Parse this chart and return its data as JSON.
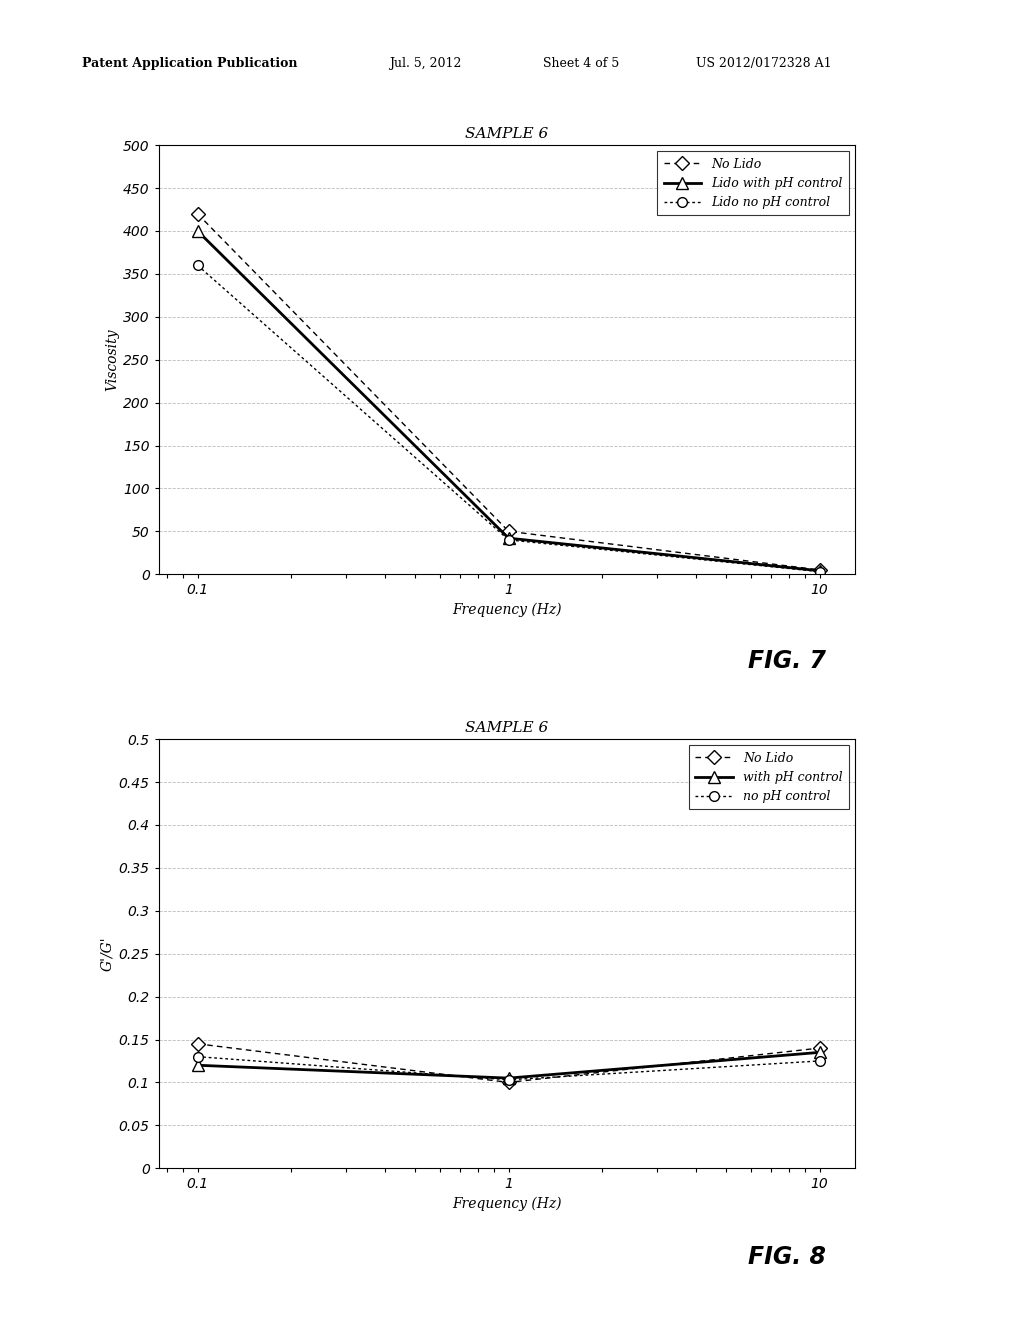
{
  "fig7": {
    "title": "SAMPLE 6",
    "xlabel": "Frequency (Hz)",
    "ylabel": "Viscosity",
    "xdata": [
      0.1,
      1,
      10
    ],
    "series": [
      {
        "label": "No Lido",
        "y": [
          420,
          50,
          5
        ],
        "linestyle": "--",
        "marker": "D",
        "color": "black",
        "linewidth": 1.0,
        "markersize": 7,
        "dashes": [
          4,
          3
        ]
      },
      {
        "label": "Lido with pH control",
        "y": [
          400,
          42,
          4
        ],
        "linestyle": "-",
        "marker": "^",
        "color": "black",
        "linewidth": 2.0,
        "markersize": 8,
        "dashes": []
      },
      {
        "label": "Lido no pH control",
        "y": [
          360,
          40,
          3
        ],
        "linestyle": "--",
        "marker": "o",
        "color": "black",
        "linewidth": 1.0,
        "markersize": 7,
        "dashes": [
          2,
          2
        ]
      }
    ],
    "ylim": [
      0,
      500
    ],
    "yticks": [
      0,
      50,
      100,
      150,
      200,
      250,
      300,
      350,
      400,
      450,
      500
    ],
    "ytick_labels": [
      "0",
      "50",
      "100",
      "150",
      "200",
      "250",
      "300",
      "350",
      "400",
      "450",
      "500"
    ],
    "xtick_labels": [
      "0.1",
      "1",
      "10"
    ],
    "fig_label": "FIG. 7"
  },
  "fig8": {
    "title": "SAMPLE 6",
    "xlabel": "Frequency (Hz)",
    "ylabel": "G'/G'",
    "xdata": [
      0.1,
      1,
      10
    ],
    "series": [
      {
        "label": "No Lido",
        "y": [
          0.145,
          0.1,
          0.14
        ],
        "linestyle": "--",
        "marker": "D",
        "color": "black",
        "linewidth": 1.0,
        "markersize": 7,
        "dashes": [
          4,
          3
        ]
      },
      {
        "label": "with pH control",
        "y": [
          0.12,
          0.105,
          0.135
        ],
        "linestyle": "-",
        "marker": "^",
        "color": "black",
        "linewidth": 2.0,
        "markersize": 8,
        "dashes": []
      },
      {
        "label": "no pH control",
        "y": [
          0.13,
          0.103,
          0.125
        ],
        "linestyle": "--",
        "marker": "o",
        "color": "black",
        "linewidth": 1.0,
        "markersize": 7,
        "dashes": [
          2,
          2
        ]
      }
    ],
    "ylim": [
      0,
      0.5
    ],
    "yticks": [
      0,
      0.05,
      0.1,
      0.15,
      0.2,
      0.25,
      0.3,
      0.35,
      0.4,
      0.45,
      0.5
    ],
    "ytick_labels": [
      "0",
      "0.05",
      "0.1",
      "0.15",
      "0.2",
      "0.25",
      "0.3",
      "0.35",
      "0.4",
      "0.45",
      "0.5"
    ],
    "xtick_labels": [
      "0.1",
      "1",
      "10"
    ],
    "fig_label": "FIG. 8"
  },
  "header_line1": "Patent Application Publication",
  "header_line2": "Jul. 5, 2012",
  "header_line3": "Sheet 4 of 5",
  "header_line4": "US 2012/0172328 A1",
  "background_color": "#ffffff",
  "grid_color": "#bbbbbb",
  "grid_linestyle": "--",
  "grid_linewidth": 0.6
}
